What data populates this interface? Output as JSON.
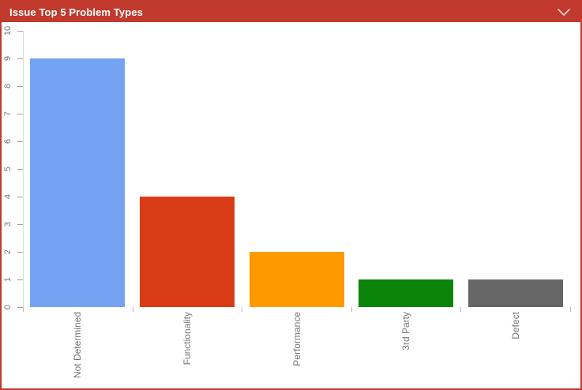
{
  "widget": {
    "title": "Issue Top 5 Problem Types",
    "header_bg": "#C2392D",
    "border_color": "#C2392D",
    "chevron_icon": "chevron-down",
    "chevron_color": "#F4D7D3"
  },
  "chart_data": {
    "type": "bar",
    "title": "Issue Top 5 Problem Types",
    "categories": [
      "Not Determined",
      "Functionality",
      "Performance",
      "3rd Party",
      "Defect"
    ],
    "values": [
      9,
      4,
      2,
      1,
      1
    ],
    "bar_colors": [
      "#74A3F4",
      "#D83B15",
      "#FF9900",
      "#0A840A",
      "#666666"
    ],
    "xlabel": "",
    "ylabel": "",
    "ylim": [
      0,
      10
    ],
    "y_ticks": [
      0,
      1,
      2,
      3,
      4,
      5,
      6,
      7,
      8,
      9,
      10
    ],
    "grid": false,
    "legend": "none",
    "axis_line_color": "#DCDCDC",
    "tick_color": "#9E9E9E",
    "label_color": "#767676",
    "tick_label_rotation": -90,
    "category_label_rotation": -90
  }
}
